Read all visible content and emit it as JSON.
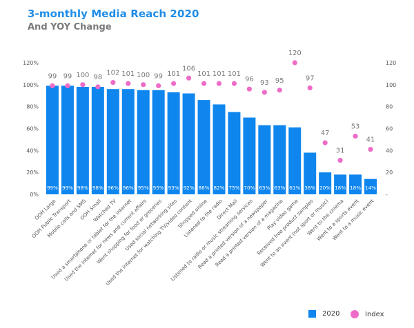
{
  "header": {
    "title": "3-monthly Media Reach 2020",
    "subtitle": "And YOY Change"
  },
  "colors": {
    "bar": "#0f86ee",
    "index": "#ee6cc8",
    "title": "#1f8de8"
  },
  "chart_data": {
    "type": "bar",
    "categories": [
      "OOH Large",
      "OOH Public Transport",
      "Mobile calls and SMS",
      "OOH Small",
      "Watched TV",
      "Used a smartphone or tablet for the internet",
      "Used the internet for news and current affairs",
      "Went shopping for food or groceries",
      "Used social networking sites",
      "Used the internet for watching TV/video content",
      "Shopped online",
      "Listened to the radio",
      "Direct Mail",
      "Listened to radio or music streaming services",
      "Read a printed version of a newspaper",
      "Read a printed version of a magazine",
      "Play video game",
      "Received free product samples",
      "Went to an event (not sport or music)",
      "Went to the cinema",
      "Went to a sports event",
      "Went to a music event"
    ],
    "series": [
      {
        "name": "2020",
        "kind": "bar",
        "axis": "left",
        "values": [
          99,
          99,
          98,
          98,
          96,
          96,
          95,
          95,
          93,
          92,
          86,
          82,
          75,
          70,
          63,
          63,
          61,
          38,
          20,
          18,
          18,
          14
        ],
        "labels": [
          "99%",
          "99%",
          "98%",
          "98%",
          "96%",
          "96%",
          "95%",
          "95%",
          "93%",
          "92%",
          "86%",
          "82%",
          "75%",
          "70%",
          "63%",
          "63%",
          "61%",
          "38%",
          "20%",
          "18%",
          "18%",
          "14%"
        ]
      },
      {
        "name": "Index",
        "kind": "scatter",
        "axis": "right",
        "values": [
          99,
          99,
          100,
          98,
          102,
          101,
          100,
          99,
          101,
          106,
          101,
          101,
          101,
          96,
          93,
          95,
          120,
          97,
          47,
          31,
          53,
          41
        ]
      }
    ],
    "y_left": {
      "ticks": [
        "0%",
        "20%",
        "40%",
        "60%",
        "80%",
        "100%",
        "120%"
      ],
      "range": [
        0,
        120
      ]
    },
    "y_right": {
      "ticks": [
        "-",
        "20",
        "40",
        "60",
        "80",
        "100",
        "120"
      ],
      "range": [
        0,
        120
      ]
    },
    "grid": false,
    "legend": "bottom-right"
  }
}
